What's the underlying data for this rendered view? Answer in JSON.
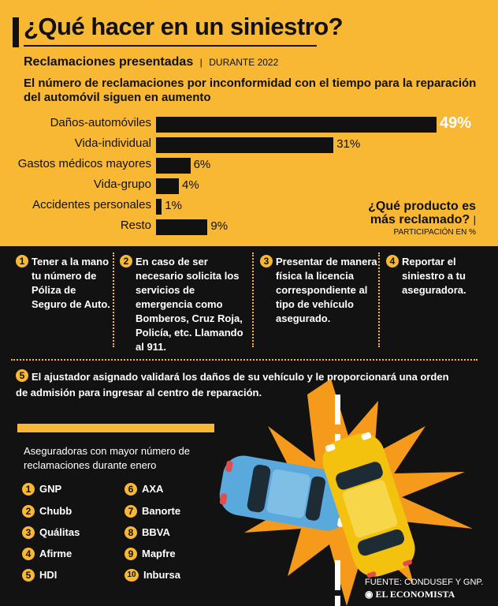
{
  "header": {
    "title": "¿Qué hacer en un siniestro?",
    "subtitle": "Reclamaciones presentadas",
    "subtitle_sep": "|",
    "subtitle_period": "DURANTE 2022",
    "lead": "El número de reclamaciones por inconformidad con el tiempo para la reparación del automóvil siguen en aumento"
  },
  "chart_data": {
    "type": "bar",
    "orientation": "horizontal",
    "categories": [
      "Daños-automóviles",
      "Vida-individual",
      "Gastos médicos mayores",
      "Vida-grupo",
      "Accidentes personales",
      "Resto"
    ],
    "values": [
      49,
      31,
      6,
      4,
      1,
      9
    ],
    "value_labels": [
      "49%",
      "31%",
      "6%",
      "4%",
      "1%",
      "9%"
    ],
    "unit": "%",
    "xlim": [
      0,
      49
    ],
    "colors": {
      "bar": "#111111",
      "background": "#f8b834",
      "highlight_label": "#ffffff"
    }
  },
  "question": {
    "line1": "¿Qué producto es",
    "line2": "más reclamado?",
    "pipe": "|",
    "note": "PARTICIPACIÓN EN %"
  },
  "steps": [
    {
      "num": "1",
      "text": "Tener a la mano tu número de Póliza de Seguro de Auto."
    },
    {
      "num": "2",
      "text": "En caso de ser necesario solicita los servicios de emergencia como Bomberos, Cruz Roja, Policía, etc. Llamando al 911."
    },
    {
      "num": "3",
      "text": "Presentar de manera física la licencia correspondiente al tipo de vehículo asegurado."
    },
    {
      "num": "4",
      "text": "Reportar el siniestro a tu aseguradora."
    },
    {
      "num": "5",
      "text": "El ajustador asignado validará los daños de su vehículo y le proporcionará una orden de admisión para ingresar al centro de reparación."
    }
  ],
  "insurers": {
    "heading": "Aseguradoras con mayor número de reclamaciones durante enero",
    "items": [
      {
        "num": "1",
        "name": "GNP"
      },
      {
        "num": "2",
        "name": "Chubb"
      },
      {
        "num": "3",
        "name": "Quálitas"
      },
      {
        "num": "4",
        "name": "Afirme"
      },
      {
        "num": "5",
        "name": "HDI"
      },
      {
        "num": "6",
        "name": "AXA"
      },
      {
        "num": "7",
        "name": "Banorte"
      },
      {
        "num": "8",
        "name": "BBVA"
      },
      {
        "num": "9",
        "name": "Mapfre"
      },
      {
        "num": "10",
        "name": "Inbursa"
      }
    ]
  },
  "footer": {
    "source": "FUENTE: CONDUSEF Y GNP.",
    "brand": "EL ECONOMISTA"
  },
  "colors": {
    "accent": "#f8b834",
    "dark": "#121212",
    "car_blue": "#5aa9dd",
    "car_yellow": "#f2c20f",
    "burst": "#f59a1a"
  }
}
